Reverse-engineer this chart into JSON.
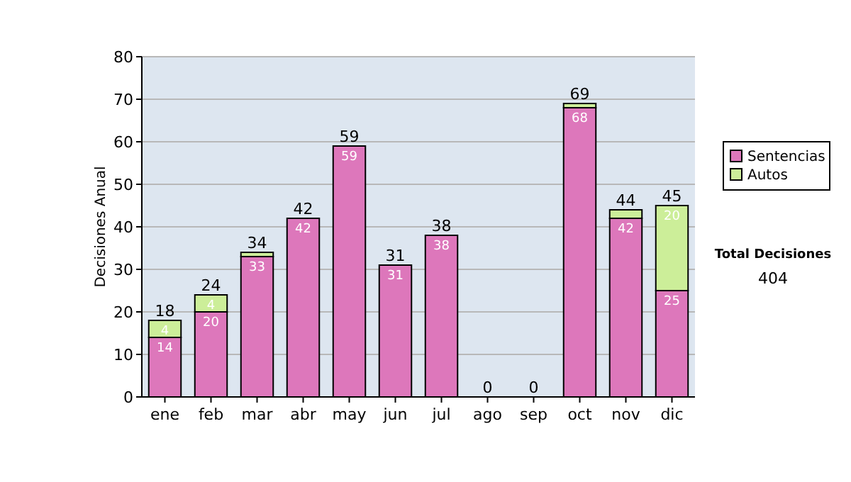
{
  "chart_data": {
    "type": "bar",
    "ylabel": "Decisiones Anual",
    "categories": [
      "ene",
      "feb",
      "mar",
      "abr",
      "may",
      "jun",
      "jul",
      "ago",
      "sep",
      "oct",
      "nov",
      "dic"
    ],
    "series": [
      {
        "name": "Sentencias",
        "color": "#dd77bb",
        "values": [
          14,
          20,
          33,
          42,
          59,
          31,
          38,
          0,
          0,
          68,
          42,
          25
        ],
        "value_labels": [
          "14",
          "20",
          "33",
          "42",
          "59",
          "31",
          "38",
          null,
          null,
          "68",
          "42",
          "25"
        ]
      },
      {
        "name": "Autos",
        "color": "#ccee99",
        "values": [
          4,
          4,
          1,
          0,
          0,
          0,
          0,
          0,
          0,
          1,
          2,
          20
        ],
        "value_labels": [
          "4",
          "4",
          null,
          null,
          null,
          null,
          null,
          null,
          null,
          null,
          null,
          "20"
        ]
      }
    ],
    "stacked": true,
    "totals": [
      "18",
      "24",
      "34",
      "42",
      "59",
      "31",
      "38",
      "0",
      "0",
      "69",
      "44",
      "45"
    ],
    "ylim": [
      0,
      80
    ],
    "yticks": [
      0,
      10,
      20,
      30,
      40,
      50,
      60,
      70,
      80
    ],
    "grid": "y",
    "legend": "right",
    "annotations": [
      "Total Decisiones",
      "404"
    ]
  }
}
